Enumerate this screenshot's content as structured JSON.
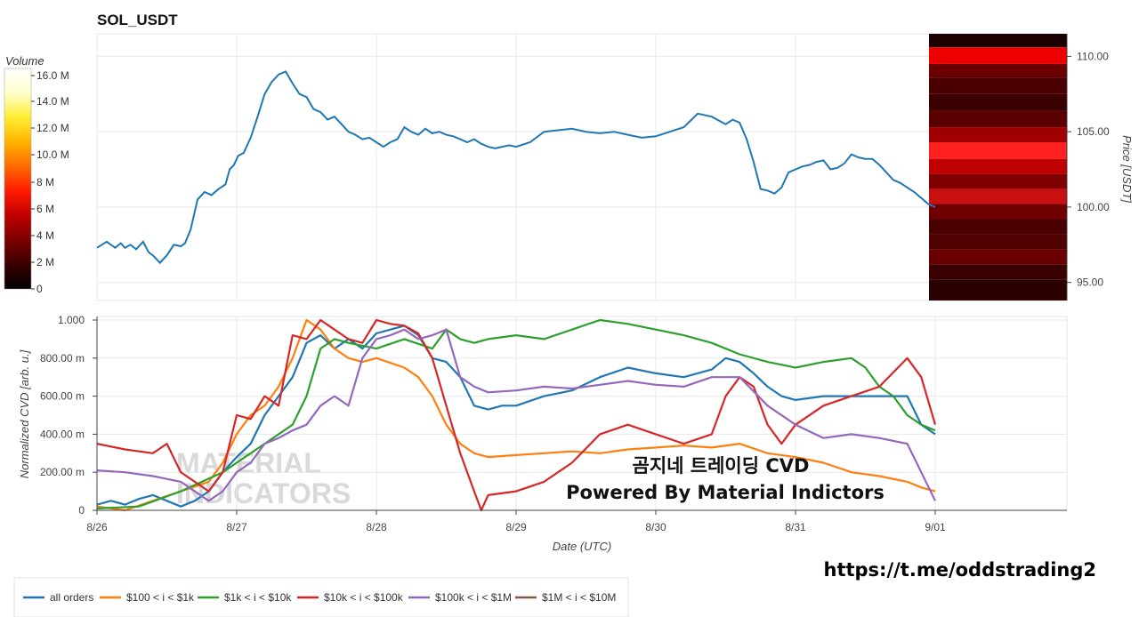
{
  "header": {
    "title": "SOL_USDT",
    "overlay_line1": "곰지네 트레이딩 CVD",
    "overlay_line2": "Powered By Material Indictors",
    "url": "https://t.me/oddstrading2",
    "watermark_line1": "MATERIAL",
    "watermark_line2": "INDICATORS"
  },
  "colorbar": {
    "title": "Volume",
    "ticks": [
      "16.0 M",
      "14.0 M",
      "12.0 M",
      "10.0 M",
      "8 M",
      "6 M",
      "4 M",
      "2 M",
      "0"
    ],
    "colors": [
      "#000000",
      "#3a0000",
      "#7a0000",
      "#c00000",
      "#ff1a00",
      "#ff6a00",
      "#ffb300",
      "#ffee33",
      "#ffffcc",
      "#ffffff"
    ]
  },
  "colors": {
    "all_orders": "#1f77b4",
    "r100_1k": "#ff7f0e",
    "r1k_10k": "#2ca02c",
    "r10k_100k": "#d62728",
    "r100k_1m": "#9467bd",
    "r1m_10m": "#8c564b"
  },
  "chart_data": [
    {
      "type": "line",
      "title": "SOL_USDT",
      "ylabel": "Price [USDT]",
      "ylim": [
        93.8,
        111.5
      ],
      "yticks": [
        "95.00",
        "100.00",
        "105.00",
        "110.00"
      ],
      "y_axis_side": "right",
      "xlim": [
        0,
        6.05
      ],
      "x_unit": "days since 8/26 00:00 UTC",
      "series": [
        {
          "x": [
            0,
            0.07,
            0.13,
            0.17,
            0.2,
            0.24,
            0.28,
            0.33,
            0.37,
            0.4,
            0.45,
            0.5,
            0.55,
            0.6,
            0.63,
            0.67,
            0.72,
            0.77,
            0.82,
            0.87,
            0.92,
            0.95,
            0.98,
            1.01,
            1.05,
            1.1,
            1.15,
            1.2,
            1.25,
            1.3,
            1.35,
            1.4,
            1.45,
            1.5,
            1.55,
            1.6,
            1.65,
            1.7,
            1.75,
            1.8,
            1.85,
            1.9,
            1.95,
            2.0,
            2.05,
            2.1,
            2.15,
            2.2,
            2.25,
            2.3,
            2.35,
            2.4,
            2.45,
            2.5,
            2.55,
            2.6,
            2.65,
            2.7,
            2.75,
            2.8,
            2.85,
            2.9,
            2.95,
            3.0,
            3.1,
            3.2,
            3.3,
            3.4,
            3.5,
            3.6,
            3.7,
            3.8,
            3.9,
            4.0,
            4.1,
            4.2,
            4.3,
            4.4,
            4.5,
            4.55,
            4.6,
            4.65,
            4.7,
            4.75,
            4.8,
            4.85,
            4.9,
            4.95,
            5.0,
            5.05,
            5.1,
            5.15,
            5.2,
            5.25,
            5.3,
            5.35,
            5.4,
            5.45,
            5.5,
            5.55,
            5.6,
            5.65,
            5.7,
            5.75,
            5.8,
            5.85,
            5.9,
            5.95,
            6.0
          ],
          "values": [
            97.3,
            97.7,
            97.3,
            97.6,
            97.3,
            97.5,
            97.2,
            97.7,
            97.0,
            96.8,
            96.3,
            96.8,
            97.5,
            97.4,
            97.6,
            98.5,
            100.5,
            101.0,
            100.8,
            101.2,
            101.5,
            102.5,
            102.8,
            103.4,
            103.6,
            104.6,
            106.0,
            107.5,
            108.3,
            108.8,
            109.0,
            108.2,
            107.5,
            107.3,
            106.5,
            106.3,
            105.8,
            106.0,
            105.5,
            105.0,
            104.8,
            104.5,
            104.6,
            104.3,
            104.0,
            104.3,
            104.5,
            105.3,
            105.0,
            104.8,
            105.2,
            104.9,
            105.0,
            104.8,
            104.7,
            104.5,
            104.3,
            104.5,
            104.2,
            104.0,
            103.9,
            104.0,
            104.1,
            104.0,
            104.3,
            105.0,
            105.1,
            105.2,
            105.0,
            104.9,
            105.0,
            104.8,
            104.6,
            104.7,
            105.0,
            105.3,
            106.2,
            106.0,
            105.5,
            105.8,
            105.6,
            104.5,
            103.0,
            101.2,
            101.1,
            100.9,
            101.3,
            102.3,
            102.5,
            102.7,
            102.8,
            103.0,
            103.1,
            102.5,
            102.6,
            102.9,
            103.5,
            103.3,
            103.2,
            103.2,
            102.8,
            102.3,
            101.8,
            101.6,
            101.3,
            101.0,
            100.6,
            100.2,
            100.0
          ]
        }
      ]
    },
    {
      "type": "heatmap",
      "ylabel": "Price [USDT]",
      "colorbar_title": "Volume",
      "colorbar_range_millions": [
        0,
        16.5
      ],
      "price_bands": [
        {
          "price_low": 110.6,
          "price_high": 111.5,
          "color": "#1a0000"
        },
        {
          "price_low": 109.5,
          "price_high": 110.6,
          "color": "#ee0000"
        },
        {
          "price_low": 108.6,
          "price_high": 109.5,
          "color": "#6a0000"
        },
        {
          "price_low": 107.5,
          "price_high": 108.6,
          "color": "#4a0000"
        },
        {
          "price_low": 106.4,
          "price_high": 107.5,
          "color": "#3a0000"
        },
        {
          "price_low": 105.3,
          "price_high": 106.4,
          "color": "#5a0000"
        },
        {
          "price_low": 104.3,
          "price_high": 105.3,
          "color": "#a00000"
        },
        {
          "price_low": 103.2,
          "price_high": 104.3,
          "color": "#ff2020"
        },
        {
          "price_low": 102.2,
          "price_high": 103.2,
          "color": "#c00000"
        },
        {
          "price_low": 101.2,
          "price_high": 102.2,
          "color": "#800000"
        },
        {
          "price_low": 100.2,
          "price_high": 101.2,
          "color": "#c81010"
        },
        {
          "price_low": 99.2,
          "price_high": 100.2,
          "color": "#700000"
        },
        {
          "price_low": 98.2,
          "price_high": 99.2,
          "color": "#4a0000"
        },
        {
          "price_low": 97.2,
          "price_high": 98.2,
          "color": "#500000"
        },
        {
          "price_low": 96.2,
          "price_high": 97.2,
          "color": "#6a0000"
        },
        {
          "price_low": 95.2,
          "price_high": 96.2,
          "color": "#3a0000"
        },
        {
          "price_low": 93.8,
          "price_high": 95.2,
          "color": "#2a0000"
        }
      ]
    },
    {
      "type": "line",
      "xlabel": "Date (UTC)",
      "ylabel": "Normalized CVD [arb. u.]",
      "ylim": [
        0,
        1.0
      ],
      "yticks": [
        "0",
        "200.00 m",
        "400.00 m",
        "600.00 m",
        "800.00 m",
        "1.000"
      ],
      "xticks": [
        "8/26",
        "8/27",
        "8/28",
        "8/29",
        "8/30",
        "8/31",
        "9/01"
      ],
      "grid": true,
      "legend": "bottom",
      "series": [
        {
          "name": "all orders",
          "color": "#1f77b4",
          "x": [
            0,
            0.1,
            0.2,
            0.3,
            0.4,
            0.5,
            0.6,
            0.7,
            0.8,
            0.9,
            1.0,
            1.1,
            1.2,
            1.3,
            1.4,
            1.5,
            1.6,
            1.7,
            1.8,
            1.9,
            2.0,
            2.1,
            2.2,
            2.3,
            2.4,
            2.5,
            2.6,
            2.7,
            2.8,
            2.9,
            3.0,
            3.2,
            3.4,
            3.6,
            3.8,
            4.0,
            4.2,
            4.4,
            4.5,
            4.6,
            4.7,
            4.8,
            4.9,
            5.0,
            5.2,
            5.4,
            5.6,
            5.8,
            5.9,
            6.0
          ],
          "values": [
            0.03,
            0.05,
            0.03,
            0.06,
            0.08,
            0.05,
            0.02,
            0.05,
            0.1,
            0.2,
            0.28,
            0.35,
            0.5,
            0.6,
            0.7,
            0.88,
            0.92,
            0.85,
            0.9,
            0.85,
            0.93,
            0.95,
            0.97,
            0.92,
            0.8,
            0.78,
            0.7,
            0.55,
            0.53,
            0.55,
            0.55,
            0.6,
            0.63,
            0.7,
            0.75,
            0.72,
            0.7,
            0.74,
            0.8,
            0.78,
            0.72,
            0.65,
            0.6,
            0.58,
            0.6,
            0.6,
            0.6,
            0.6,
            0.45,
            0.4
          ]
        },
        {
          "name": "$100 < i < $1k",
          "color": "#ff7f0e",
          "x": [
            0,
            0.2,
            0.4,
            0.6,
            0.8,
            0.9,
            1.0,
            1.1,
            1.2,
            1.3,
            1.4,
            1.5,
            1.6,
            1.7,
            1.8,
            1.9,
            2.0,
            2.2,
            2.3,
            2.4,
            2.5,
            2.6,
            2.7,
            2.8,
            3.0,
            3.2,
            3.4,
            3.6,
            3.8,
            4.0,
            4.2,
            4.4,
            4.6,
            4.8,
            5.0,
            5.2,
            5.4,
            5.6,
            5.8,
            5.9,
            6.0
          ],
          "values": [
            0.02,
            0.0,
            0.05,
            0.1,
            0.15,
            0.25,
            0.4,
            0.5,
            0.55,
            0.65,
            0.8,
            1.0,
            0.95,
            0.85,
            0.8,
            0.78,
            0.8,
            0.75,
            0.7,
            0.6,
            0.45,
            0.35,
            0.3,
            0.28,
            0.29,
            0.3,
            0.31,
            0.3,
            0.32,
            0.33,
            0.34,
            0.33,
            0.35,
            0.3,
            0.28,
            0.25,
            0.2,
            0.18,
            0.15,
            0.12,
            0.1
          ]
        },
        {
          "name": "$1k < i < $10k",
          "color": "#2ca02c",
          "x": [
            0,
            0.3,
            0.6,
            0.9,
            1.0,
            1.2,
            1.4,
            1.5,
            1.6,
            1.7,
            1.8,
            2.0,
            2.2,
            2.4,
            2.5,
            2.6,
            2.7,
            2.8,
            3.0,
            3.2,
            3.4,
            3.6,
            3.8,
            4.0,
            4.2,
            4.4,
            4.6,
            4.8,
            5.0,
            5.2,
            5.4,
            5.5,
            5.6,
            5.7,
            5.8,
            5.9,
            6.0
          ],
          "values": [
            0.01,
            0.02,
            0.1,
            0.2,
            0.25,
            0.35,
            0.45,
            0.6,
            0.85,
            0.9,
            0.88,
            0.85,
            0.9,
            0.85,
            0.95,
            0.9,
            0.88,
            0.9,
            0.92,
            0.9,
            0.95,
            1.0,
            0.98,
            0.95,
            0.92,
            0.88,
            0.82,
            0.78,
            0.75,
            0.78,
            0.8,
            0.75,
            0.65,
            0.6,
            0.5,
            0.45,
            0.42
          ]
        },
        {
          "name": "$10k < i < $100k",
          "color": "#d62728",
          "x": [
            0,
            0.2,
            0.4,
            0.5,
            0.6,
            0.7,
            0.8,
            0.9,
            1.0,
            1.1,
            1.2,
            1.3,
            1.4,
            1.5,
            1.6,
            1.7,
            1.8,
            1.9,
            2.0,
            2.1,
            2.2,
            2.3,
            2.4,
            2.5,
            2.6,
            2.7,
            2.75,
            2.8,
            3.0,
            3.2,
            3.4,
            3.6,
            3.8,
            4.0,
            4.2,
            4.4,
            4.5,
            4.6,
            4.7,
            4.8,
            4.9,
            5.0,
            5.2,
            5.4,
            5.6,
            5.8,
            5.9,
            6.0
          ],
          "values": [
            0.35,
            0.32,
            0.3,
            0.35,
            0.2,
            0.15,
            0.1,
            0.2,
            0.5,
            0.48,
            0.6,
            0.55,
            0.92,
            0.9,
            1.0,
            0.95,
            0.9,
            0.88,
            1.0,
            0.98,
            0.97,
            0.93,
            0.8,
            0.55,
            0.3,
            0.1,
            0.0,
            0.08,
            0.1,
            0.15,
            0.25,
            0.4,
            0.45,
            0.4,
            0.35,
            0.4,
            0.6,
            0.7,
            0.65,
            0.45,
            0.35,
            0.45,
            0.55,
            0.6,
            0.65,
            0.8,
            0.7,
            0.45
          ]
        },
        {
          "name": "$100k < i < $1M",
          "color": "#9467bd",
          "x": [
            0,
            0.2,
            0.4,
            0.6,
            0.8,
            0.9,
            1.0,
            1.1,
            1.2,
            1.3,
            1.4,
            1.5,
            1.6,
            1.7,
            1.8,
            1.9,
            2.0,
            2.1,
            2.2,
            2.3,
            2.4,
            2.5,
            2.6,
            2.7,
            2.8,
            3.0,
            3.2,
            3.4,
            3.6,
            3.8,
            4.0,
            4.2,
            4.4,
            4.6,
            4.8,
            5.0,
            5.2,
            5.4,
            5.6,
            5.8,
            5.9,
            6.0
          ],
          "values": [
            0.21,
            0.2,
            0.18,
            0.15,
            0.05,
            0.1,
            0.2,
            0.25,
            0.35,
            0.38,
            0.42,
            0.45,
            0.55,
            0.6,
            0.55,
            0.8,
            0.9,
            0.92,
            0.95,
            0.9,
            0.92,
            0.95,
            0.7,
            0.65,
            0.62,
            0.63,
            0.65,
            0.64,
            0.66,
            0.68,
            0.66,
            0.65,
            0.7,
            0.7,
            0.55,
            0.45,
            0.38,
            0.4,
            0.38,
            0.35,
            0.2,
            0.05
          ]
        }
      ]
    }
  ],
  "legend": [
    {
      "label": "all orders",
      "color": "#1f77b4"
    },
    {
      "label": "$100 < i < $1k",
      "color": "#ff7f0e"
    },
    {
      "label": "$1k < i < $10k",
      "color": "#2ca02c"
    },
    {
      "label": "$10k < i < $100k",
      "color": "#d62728"
    },
    {
      "label": "$100k < i < $1M",
      "color": "#9467bd"
    },
    {
      "label": "$1M < i < $10M",
      "color": "#8c564b"
    }
  ]
}
